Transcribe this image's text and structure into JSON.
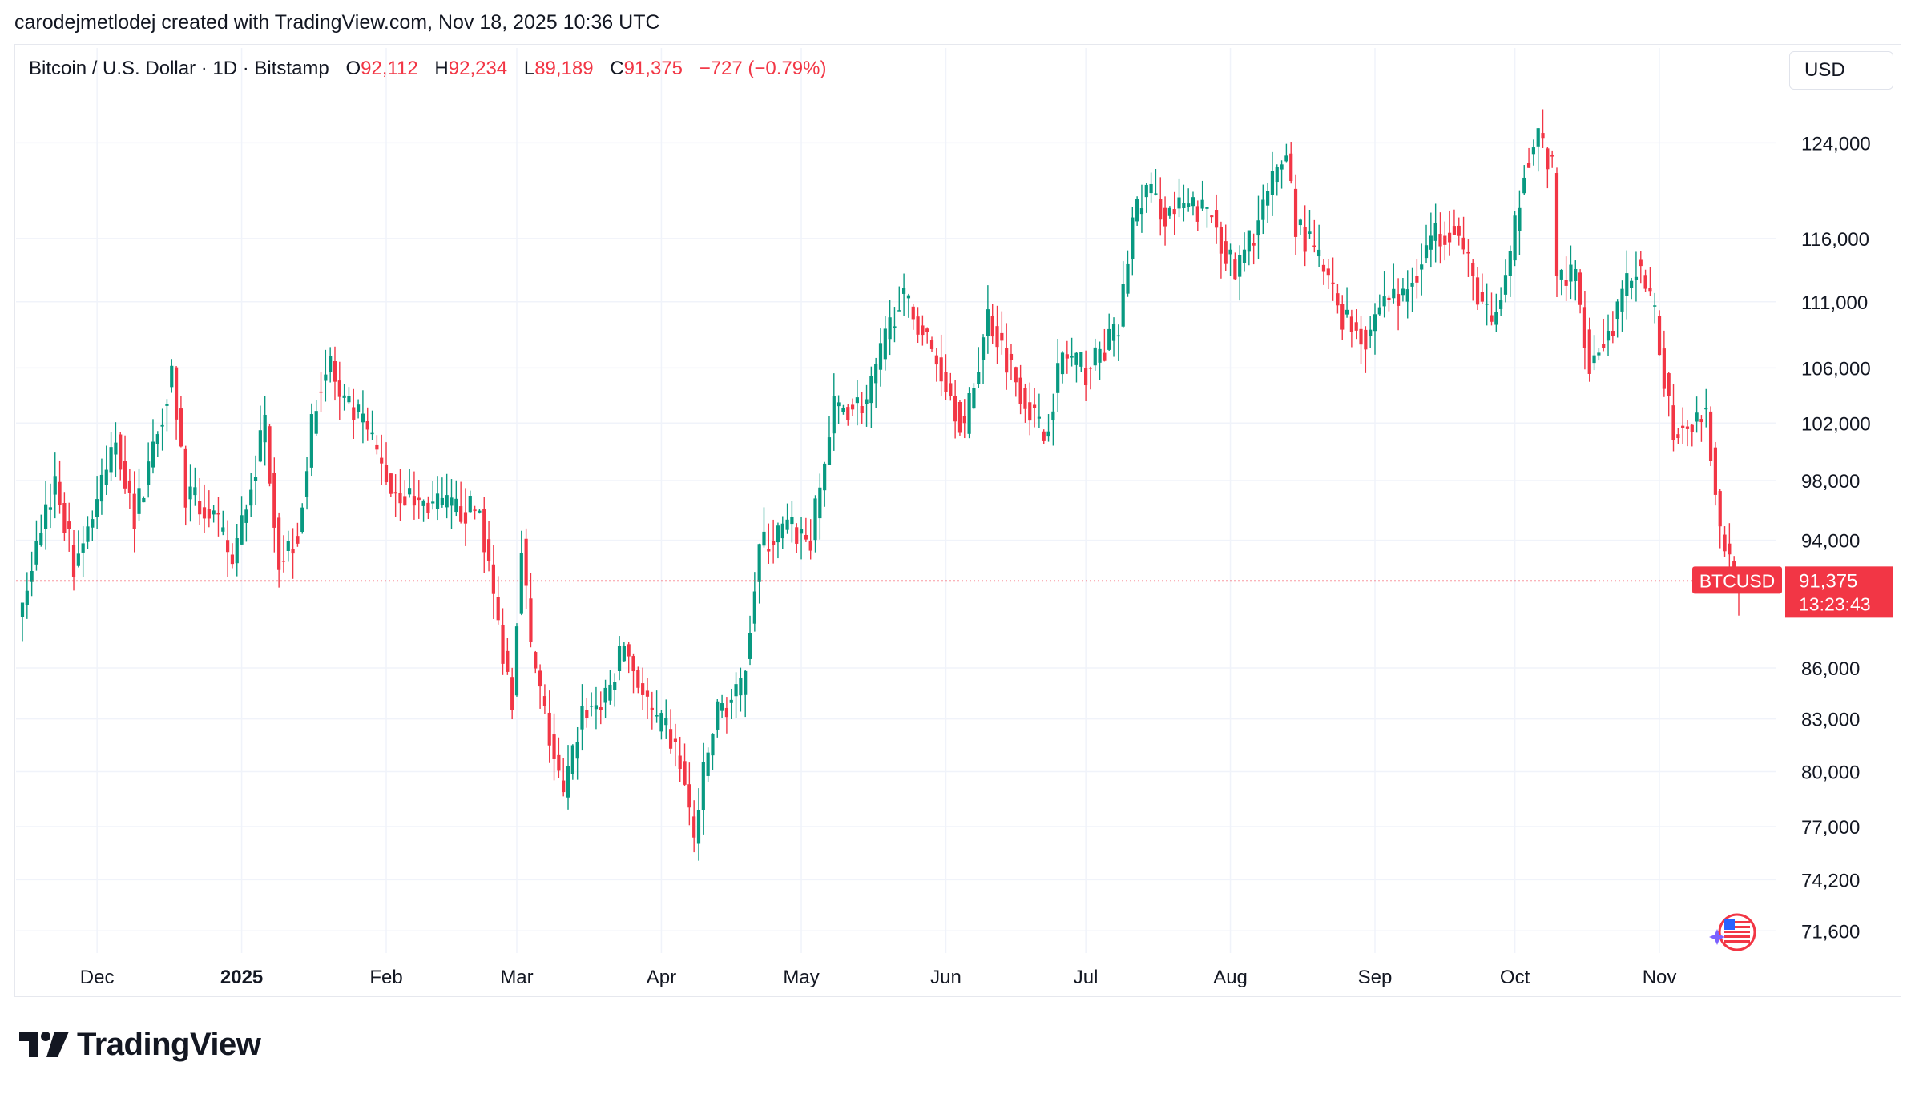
{
  "header": {
    "attribution": "carodejmetlodej created with TradingView.com, Nov 18, 2025 10:36 UTC"
  },
  "legend": {
    "symbol": "Bitcoin / U.S. Dollar · 1D · Bitstamp",
    "o_label": "O",
    "o_value": "92,112",
    "h_label": "H",
    "h_value": "92,234",
    "l_label": "L",
    "l_value": "89,189",
    "c_label": "C",
    "c_value": "91,375",
    "change": "−727 (−0.79%)"
  },
  "currency_button": "USD",
  "price_tag": {
    "symbol_label": "BTCUSD",
    "price": "91,375",
    "countdown": "13:23:43"
  },
  "brand": {
    "name": "TradingView"
  },
  "colors": {
    "up": "#089981",
    "down": "#f23645",
    "grid": "#f0f3fa",
    "text": "#131722"
  },
  "chart_data": {
    "type": "candlestick",
    "symbol": "BTCUSD",
    "interval": "1D",
    "exchange": "Bitstamp",
    "scale": "log",
    "grid": true,
    "y_ticks": [
      124000,
      116000,
      111000,
      106000,
      102000,
      98000,
      94000,
      86000,
      83000,
      80000,
      77000,
      74200,
      71600
    ],
    "y_tick_labels": [
      "124,000",
      "116,000",
      "111,000",
      "106,000",
      "102,000",
      "98,000",
      "94,000",
      "86,000",
      "83,000",
      "80,000",
      "77,000",
      "74,200",
      "71,600"
    ],
    "x_ticks": [
      {
        "date": "2024-12-01",
        "label": "Dec",
        "bold": false
      },
      {
        "date": "2025-01-01",
        "label": "2025",
        "bold": true
      },
      {
        "date": "2025-02-01",
        "label": "Feb",
        "bold": false
      },
      {
        "date": "2025-03-01",
        "label": "Mar",
        "bold": false
      },
      {
        "date": "2025-04-01",
        "label": "Apr",
        "bold": false
      },
      {
        "date": "2025-05-01",
        "label": "May",
        "bold": false
      },
      {
        "date": "2025-06-01",
        "label": "Jun",
        "bold": false
      },
      {
        "date": "2025-07-01",
        "label": "Jul",
        "bold": false
      },
      {
        "date": "2025-08-01",
        "label": "Aug",
        "bold": false
      },
      {
        "date": "2025-09-01",
        "label": "Sep",
        "bold": false
      },
      {
        "date": "2025-10-01",
        "label": "Oct",
        "bold": false
      },
      {
        "date": "2025-11-01",
        "label": "Nov",
        "bold": false
      }
    ],
    "x_range": [
      "2024-11-15",
      "2025-11-18"
    ],
    "y_range": [
      70500,
      131000
    ],
    "last_price": 91375,
    "close_path": [
      {
        "date": "2024-11-15",
        "close": 90000
      },
      {
        "date": "2024-11-20",
        "close": 96000
      },
      {
        "date": "2024-11-22",
        "close": 98000
      },
      {
        "date": "2024-11-26",
        "close": 92500
      },
      {
        "date": "2024-12-01",
        "close": 96500
      },
      {
        "date": "2024-12-05",
        "close": 101000
      },
      {
        "date": "2024-12-09",
        "close": 95500
      },
      {
        "date": "2024-12-14",
        "close": 101500
      },
      {
        "date": "2024-12-17",
        "close": 106000
      },
      {
        "date": "2024-12-20",
        "close": 97000
      },
      {
        "date": "2024-12-26",
        "close": 95500
      },
      {
        "date": "2024-12-30",
        "close": 92500
      },
      {
        "date": "2025-01-06",
        "close": 102000
      },
      {
        "date": "2025-01-09",
        "close": 92700
      },
      {
        "date": "2025-01-13",
        "close": 94500
      },
      {
        "date": "2025-01-17",
        "close": 104000
      },
      {
        "date": "2025-01-20",
        "close": 106500
      },
      {
        "date": "2025-01-22",
        "close": 103500
      },
      {
        "date": "2025-01-27",
        "close": 102000
      },
      {
        "date": "2025-02-02",
        "close": 97500
      },
      {
        "date": "2025-02-08",
        "close": 96500
      },
      {
        "date": "2025-02-16",
        "close": 96000
      },
      {
        "date": "2025-02-21",
        "close": 96000
      },
      {
        "date": "2025-02-25",
        "close": 88500
      },
      {
        "date": "2025-02-28",
        "close": 84300
      },
      {
        "date": "2025-03-02",
        "close": 94200
      },
      {
        "date": "2025-03-04",
        "close": 87000
      },
      {
        "date": "2025-03-09",
        "close": 80700
      },
      {
        "date": "2025-03-11",
        "close": 78500
      },
      {
        "date": "2025-03-15",
        "close": 83500
      },
      {
        "date": "2025-03-20",
        "close": 84000
      },
      {
        "date": "2025-03-24",
        "close": 87500
      },
      {
        "date": "2025-03-28",
        "close": 84500
      },
      {
        "date": "2025-03-31",
        "close": 82500
      },
      {
        "date": "2025-04-02",
        "close": 82400
      },
      {
        "date": "2025-04-05",
        "close": 80500
      },
      {
        "date": "2025-04-08",
        "close": 76300
      },
      {
        "date": "2025-04-10",
        "close": 79700
      },
      {
        "date": "2025-04-13",
        "close": 83500
      },
      {
        "date": "2025-04-18",
        "close": 84500
      },
      {
        "date": "2025-04-22",
        "close": 93500
      },
      {
        "date": "2025-04-28",
        "close": 94800
      },
      {
        "date": "2025-05-03",
        "close": 94000
      },
      {
        "date": "2025-05-08",
        "close": 103000
      },
      {
        "date": "2025-05-15",
        "close": 103500
      },
      {
        "date": "2025-05-22",
        "close": 111500
      },
      {
        "date": "2025-05-26",
        "close": 109500
      },
      {
        "date": "2025-06-01",
        "close": 105000
      },
      {
        "date": "2025-06-05",
        "close": 101500
      },
      {
        "date": "2025-06-10",
        "close": 110000
      },
      {
        "date": "2025-06-17",
        "close": 104500
      },
      {
        "date": "2025-06-22",
        "close": 101000
      },
      {
        "date": "2025-06-26",
        "close": 107000
      },
      {
        "date": "2025-07-01",
        "close": 105800
      },
      {
        "date": "2025-07-08",
        "close": 108800
      },
      {
        "date": "2025-07-11",
        "close": 117500
      },
      {
        "date": "2025-07-14",
        "close": 120000
      },
      {
        "date": "2025-07-18",
        "close": 118000
      },
      {
        "date": "2025-07-23",
        "close": 118500
      },
      {
        "date": "2025-07-28",
        "close": 118000
      },
      {
        "date": "2025-08-02",
        "close": 113000
      },
      {
        "date": "2025-08-07",
        "close": 117500
      },
      {
        "date": "2025-08-13",
        "close": 123400
      },
      {
        "date": "2025-08-15",
        "close": 117300
      },
      {
        "date": "2025-08-20",
        "close": 114200
      },
      {
        "date": "2025-08-25",
        "close": 110000
      },
      {
        "date": "2025-08-30",
        "close": 108300
      },
      {
        "date": "2025-09-03",
        "close": 111500
      },
      {
        "date": "2025-09-07",
        "close": 111200
      },
      {
        "date": "2025-09-13",
        "close": 116000
      },
      {
        "date": "2025-09-18",
        "close": 117200
      },
      {
        "date": "2025-09-22",
        "close": 112700
      },
      {
        "date": "2025-09-26",
        "close": 109000
      },
      {
        "date": "2025-09-30",
        "close": 114000
      },
      {
        "date": "2025-10-03",
        "close": 122300
      },
      {
        "date": "2025-10-06",
        "close": 124700
      },
      {
        "date": "2025-10-09",
        "close": 121500
      },
      {
        "date": "2025-10-10",
        "close": 112800
      },
      {
        "date": "2025-10-14",
        "close": 113000
      },
      {
        "date": "2025-10-17",
        "close": 106500
      },
      {
        "date": "2025-10-21",
        "close": 108500
      },
      {
        "date": "2025-10-27",
        "close": 114000
      },
      {
        "date": "2025-10-31",
        "close": 109600
      },
      {
        "date": "2025-11-04",
        "close": 101500
      },
      {
        "date": "2025-11-08",
        "close": 102300
      },
      {
        "date": "2025-11-11",
        "close": 103000
      },
      {
        "date": "2025-11-14",
        "close": 94500
      },
      {
        "date": "2025-11-17",
        "close": 92100
      },
      {
        "date": "2025-11-18",
        "close": 91375
      }
    ]
  }
}
